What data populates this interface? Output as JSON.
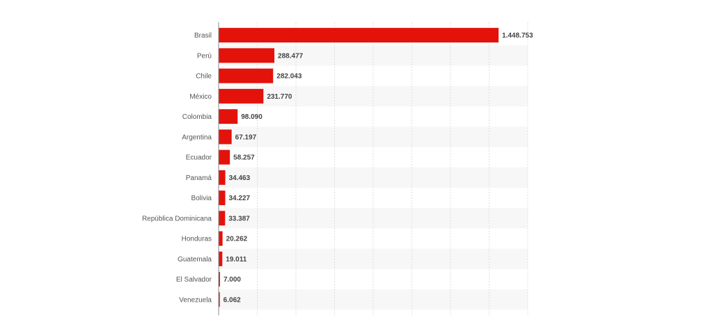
{
  "chart_data": {
    "type": "bar",
    "orientation": "horizontal",
    "categories": [
      "Brasil",
      "Perú",
      "Chile",
      "México",
      "Colombia",
      "Argentina",
      "Ecuador",
      "Panamá",
      "Bolivia",
      "República Dominicana",
      "Honduras",
      "Guatemala",
      "El Salvador",
      "Venezuela"
    ],
    "values": [
      1448753,
      288477,
      282043,
      231770,
      98090,
      67197,
      58257,
      34463,
      34227,
      33387,
      20262,
      19011,
      7000,
      6062
    ],
    "value_labels": [
      "1.448.753",
      "288.477",
      "282.043",
      "231.770",
      "98.090",
      "67.197",
      "58.257",
      "34.463",
      "34.227",
      "33.387",
      "20.262",
      "19.011",
      "7.000",
      "6.062"
    ],
    "xlim": [
      0,
      1600000
    ],
    "grid": true,
    "title": "",
    "xlabel": "",
    "ylabel": "",
    "colors": {
      "bar": "#e3120b",
      "grid": "#dddddd",
      "band": "#f7f7f7",
      "axis": "#888888"
    }
  }
}
